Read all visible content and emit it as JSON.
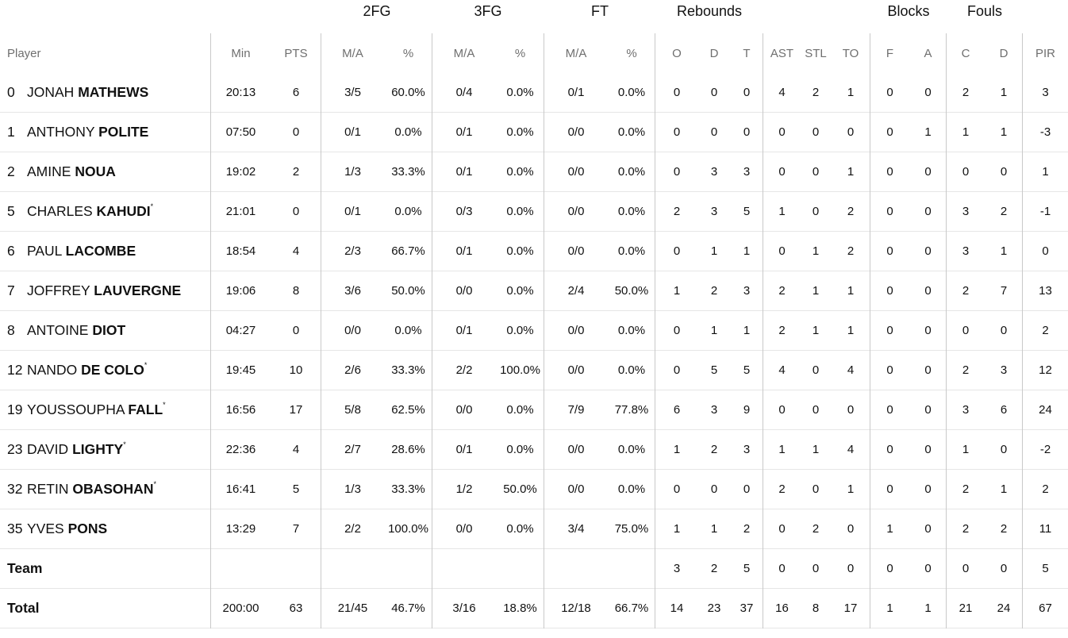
{
  "groups": {
    "fg2": "2FG",
    "fg3": "3FG",
    "ft": "FT",
    "reb": "Rebounds",
    "blk": "Blocks",
    "fouls": "Fouls"
  },
  "columns": [
    "Player",
    "Min",
    "PTS",
    "M/A",
    "%",
    "M/A",
    "%",
    "M/A",
    "%",
    "O",
    "D",
    "T",
    "AST",
    "STL",
    "TO",
    "F",
    "A",
    "C",
    "D",
    "PIR"
  ],
  "players": [
    {
      "num": "0",
      "first": "JONAH",
      "last": "MATHEWS",
      "star": "",
      "min": "20:13",
      "pts": "6",
      "fg2_ma": "3/5",
      "fg2_pct": "60.0%",
      "fg3_ma": "0/4",
      "fg3_pct": "0.0%",
      "ft_ma": "0/1",
      "ft_pct": "0.0%",
      "o": "0",
      "d": "0",
      "t": "0",
      "ast": "4",
      "stl": "2",
      "to": "1",
      "bf": "0",
      "ba": "0",
      "fc": "2",
      "fd": "1",
      "pir": "3"
    },
    {
      "num": "1",
      "first": "ANTHONY",
      "last": "POLITE",
      "star": "",
      "min": "07:50",
      "pts": "0",
      "fg2_ma": "0/1",
      "fg2_pct": "0.0%",
      "fg3_ma": "0/1",
      "fg3_pct": "0.0%",
      "ft_ma": "0/0",
      "ft_pct": "0.0%",
      "o": "0",
      "d": "0",
      "t": "0",
      "ast": "0",
      "stl": "0",
      "to": "0",
      "bf": "0",
      "ba": "1",
      "fc": "1",
      "fd": "1",
      "pir": "-3"
    },
    {
      "num": "2",
      "first": "AMINE",
      "last": "NOUA",
      "star": "",
      "min": "19:02",
      "pts": "2",
      "fg2_ma": "1/3",
      "fg2_pct": "33.3%",
      "fg3_ma": "0/1",
      "fg3_pct": "0.0%",
      "ft_ma": "0/0",
      "ft_pct": "0.0%",
      "o": "0",
      "d": "3",
      "t": "3",
      "ast": "0",
      "stl": "0",
      "to": "1",
      "bf": "0",
      "ba": "0",
      "fc": "0",
      "fd": "0",
      "pir": "1"
    },
    {
      "num": "5",
      "first": "CHARLES",
      "last": "KAHUDI",
      "star": "*",
      "min": "21:01",
      "pts": "0",
      "fg2_ma": "0/1",
      "fg2_pct": "0.0%",
      "fg3_ma": "0/3",
      "fg3_pct": "0.0%",
      "ft_ma": "0/0",
      "ft_pct": "0.0%",
      "o": "2",
      "d": "3",
      "t": "5",
      "ast": "1",
      "stl": "0",
      "to": "2",
      "bf": "0",
      "ba": "0",
      "fc": "3",
      "fd": "2",
      "pir": "-1"
    },
    {
      "num": "6",
      "first": "PAUL",
      "last": "LACOMBE",
      "star": "",
      "min": "18:54",
      "pts": "4",
      "fg2_ma": "2/3",
      "fg2_pct": "66.7%",
      "fg3_ma": "0/1",
      "fg3_pct": "0.0%",
      "ft_ma": "0/0",
      "ft_pct": "0.0%",
      "o": "0",
      "d": "1",
      "t": "1",
      "ast": "0",
      "stl": "1",
      "to": "2",
      "bf": "0",
      "ba": "0",
      "fc": "3",
      "fd": "1",
      "pir": "0"
    },
    {
      "num": "7",
      "first": "JOFFREY",
      "last": "LAUVERGNE",
      "star": "",
      "min": "19:06",
      "pts": "8",
      "fg2_ma": "3/6",
      "fg2_pct": "50.0%",
      "fg3_ma": "0/0",
      "fg3_pct": "0.0%",
      "ft_ma": "2/4",
      "ft_pct": "50.0%",
      "o": "1",
      "d": "2",
      "t": "3",
      "ast": "2",
      "stl": "1",
      "to": "1",
      "bf": "0",
      "ba": "0",
      "fc": "2",
      "fd": "7",
      "pir": "13"
    },
    {
      "num": "8",
      "first": "ANTOINE",
      "last": "DIOT",
      "star": "",
      "min": "04:27",
      "pts": "0",
      "fg2_ma": "0/0",
      "fg2_pct": "0.0%",
      "fg3_ma": "0/1",
      "fg3_pct": "0.0%",
      "ft_ma": "0/0",
      "ft_pct": "0.0%",
      "o": "0",
      "d": "1",
      "t": "1",
      "ast": "2",
      "stl": "1",
      "to": "1",
      "bf": "0",
      "ba": "0",
      "fc": "0",
      "fd": "0",
      "pir": "2"
    },
    {
      "num": "12",
      "first": "NANDO",
      "last": "DE COLO",
      "star": "*",
      "min": "19:45",
      "pts": "10",
      "fg2_ma": "2/6",
      "fg2_pct": "33.3%",
      "fg3_ma": "2/2",
      "fg3_pct": "100.0%",
      "ft_ma": "0/0",
      "ft_pct": "0.0%",
      "o": "0",
      "d": "5",
      "t": "5",
      "ast": "4",
      "stl": "0",
      "to": "4",
      "bf": "0",
      "ba": "0",
      "fc": "2",
      "fd": "3",
      "pir": "12"
    },
    {
      "num": "19",
      "first": "YOUSSOUPHA",
      "last": "FALL",
      "star": "*",
      "min": "16:56",
      "pts": "17",
      "fg2_ma": "5/8",
      "fg2_pct": "62.5%",
      "fg3_ma": "0/0",
      "fg3_pct": "0.0%",
      "ft_ma": "7/9",
      "ft_pct": "77.8%",
      "o": "6",
      "d": "3",
      "t": "9",
      "ast": "0",
      "stl": "0",
      "to": "0",
      "bf": "0",
      "ba": "0",
      "fc": "3",
      "fd": "6",
      "pir": "24"
    },
    {
      "num": "23",
      "first": "DAVID",
      "last": "LIGHTY",
      "star": "*",
      "min": "22:36",
      "pts": "4",
      "fg2_ma": "2/7",
      "fg2_pct": "28.6%",
      "fg3_ma": "0/1",
      "fg3_pct": "0.0%",
      "ft_ma": "0/0",
      "ft_pct": "0.0%",
      "o": "1",
      "d": "2",
      "t": "3",
      "ast": "1",
      "stl": "1",
      "to": "4",
      "bf": "0",
      "ba": "0",
      "fc": "1",
      "fd": "0",
      "pir": "-2"
    },
    {
      "num": "32",
      "first": "RETIN",
      "last": "OBASOHAN",
      "star": "*",
      "min": "16:41",
      "pts": "5",
      "fg2_ma": "1/3",
      "fg2_pct": "33.3%",
      "fg3_ma": "1/2",
      "fg3_pct": "50.0%",
      "ft_ma": "0/0",
      "ft_pct": "0.0%",
      "o": "0",
      "d": "0",
      "t": "0",
      "ast": "2",
      "stl": "0",
      "to": "1",
      "bf": "0",
      "ba": "0",
      "fc": "2",
      "fd": "1",
      "pir": "2"
    },
    {
      "num": "35",
      "first": "YVES",
      "last": "PONS",
      "star": "",
      "min": "13:29",
      "pts": "7",
      "fg2_ma": "2/2",
      "fg2_pct": "100.0%",
      "fg3_ma": "0/0",
      "fg3_pct": "0.0%",
      "ft_ma": "3/4",
      "ft_pct": "75.0%",
      "o": "1",
      "d": "1",
      "t": "2",
      "ast": "0",
      "stl": "2",
      "to": "0",
      "bf": "1",
      "ba": "0",
      "fc": "2",
      "fd": "2",
      "pir": "11"
    }
  ],
  "team": {
    "label": "Team",
    "o": "3",
    "d": "2",
    "t": "5",
    "ast": "0",
    "stl": "0",
    "to": "0",
    "bf": "0",
    "ba": "0",
    "fc": "0",
    "fd": "0",
    "pir": "5"
  },
  "total": {
    "label": "Total",
    "min": "200:00",
    "pts": "63",
    "fg2_ma": "21/45",
    "fg2_pct": "46.7%",
    "fg3_ma": "3/16",
    "fg3_pct": "18.8%",
    "ft_ma": "12/18",
    "ft_pct": "66.7%",
    "o": "14",
    "d": "23",
    "t": "37",
    "ast": "16",
    "stl": "8",
    "to": "17",
    "bf": "1",
    "ba": "1",
    "fc": "21",
    "fd": "24",
    "pir": "67"
  }
}
